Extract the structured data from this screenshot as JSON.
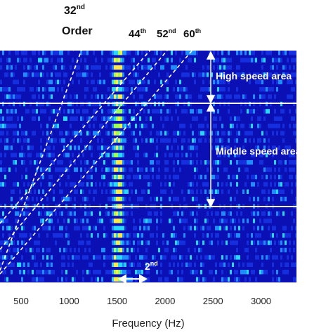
{
  "chart_data": {
    "type": "heatmap",
    "title": "",
    "xlabel": "Frequency (Hz)",
    "ylabel": "",
    "xlim": [
      280,
      3370
    ],
    "xticks": [
      500,
      1000,
      1500,
      2000,
      2500,
      3000
    ],
    "colormap": [
      "#0b10b4",
      "#1a3cf0",
      "#1f8cff",
      "#2ad6ff",
      "#9dff5a",
      "#ffe84a"
    ],
    "order_lines": [
      {
        "label": "32nd\nOrder",
        "sup": "nd",
        "base": "32",
        "suffix": "Order"
      },
      {
        "label": "44th",
        "base": "44",
        "sup": "th"
      },
      {
        "label": "52nd",
        "base": "52",
        "sup": "nd"
      },
      {
        "label": "60th",
        "base": "60",
        "sup": "th"
      }
    ],
    "zones": [
      {
        "label": "High speed area"
      },
      {
        "label": "Middle speed area"
      }
    ],
    "harmonic": {
      "base": "2",
      "sup": "nd",
      "center_hz": 1530,
      "span_hz": [
        1440,
        1640
      ]
    },
    "dominant_frequency_hz": 1500
  }
}
